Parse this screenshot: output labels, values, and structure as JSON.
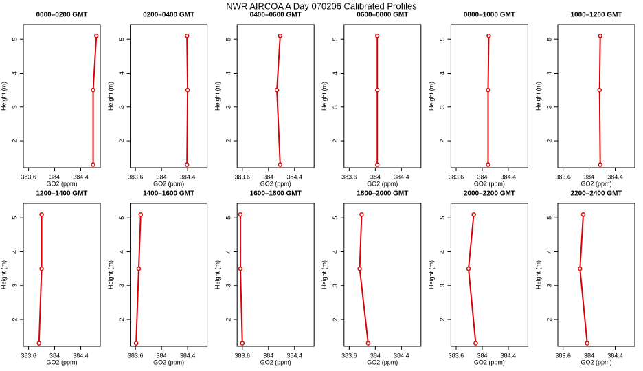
{
  "title": "NWR AIRCOA A  Day 070206  Calibrated Profiles",
  "chart_data": [
    {
      "type": "line",
      "title": "0000–0200 GMT",
      "xlabel": "GO2 (ppm)",
      "ylabel": "Height (m)",
      "color": "#dd0000",
      "x": [
        384.64,
        384.59,
        384.59
      ],
      "values": [
        5.1,
        3.5,
        1.3
      ],
      "xlim": [
        383.52,
        384.7
      ],
      "ylim": [
        1.21,
        5.43
      ],
      "xticks": [
        383.6,
        384.0,
        384.4
      ],
      "yticks": [
        2,
        3,
        4,
        5
      ]
    },
    {
      "type": "line",
      "title": "0200–0400 GMT",
      "xlabel": "GO2 (ppm)",
      "ylabel": "Height (m)",
      "color": "#dd0000",
      "x": [
        384.39,
        384.4,
        384.39
      ],
      "values": [
        5.1,
        3.5,
        1.3
      ],
      "xlim": [
        383.52,
        384.7
      ],
      "ylim": [
        1.21,
        5.43
      ],
      "xticks": [
        383.6,
        384.0,
        384.4
      ],
      "yticks": [
        2,
        3,
        4,
        5
      ]
    },
    {
      "type": "line",
      "title": "0400–0600 GMT",
      "xlabel": "GO2 (ppm)",
      "ylabel": "Height (m)",
      "color": "#dd0000",
      "x": [
        384.18,
        384.13,
        384.18
      ],
      "values": [
        5.1,
        3.5,
        1.3
      ],
      "xlim": [
        383.52,
        384.7
      ],
      "ylim": [
        1.21,
        5.43
      ],
      "xticks": [
        383.6,
        384.0,
        384.4
      ],
      "yticks": [
        2,
        3,
        4,
        5
      ]
    },
    {
      "type": "line",
      "title": "0600–0800 GMT",
      "xlabel": "GO2 (ppm)",
      "ylabel": "Height (m)",
      "color": "#dd0000",
      "x": [
        384.03,
        384.03,
        384.03
      ],
      "values": [
        5.1,
        3.5,
        1.3
      ],
      "xlim": [
        383.52,
        384.7
      ],
      "ylim": [
        1.21,
        5.43
      ],
      "xticks": [
        383.6,
        384.0,
        384.4
      ],
      "yticks": [
        2,
        3,
        4,
        5
      ]
    },
    {
      "type": "line",
      "title": "0800–1000 GMT",
      "xlabel": "GO2 (ppm)",
      "ylabel": "Height (m)",
      "color": "#dd0000",
      "x": [
        384.1,
        384.09,
        384.09
      ],
      "values": [
        5.1,
        3.5,
        1.3
      ],
      "xlim": [
        383.52,
        384.7
      ],
      "ylim": [
        1.21,
        5.43
      ],
      "xticks": [
        383.6,
        384.0,
        384.4
      ],
      "yticks": [
        2,
        3,
        4,
        5
      ]
    },
    {
      "type": "line",
      "title": "1000–1200 GMT",
      "xlabel": "GO2 (ppm)",
      "ylabel": "Height (m)",
      "color": "#dd0000",
      "x": [
        384.17,
        384.16,
        384.17
      ],
      "values": [
        5.1,
        3.5,
        1.3
      ],
      "xlim": [
        383.52,
        384.7
      ],
      "ylim": [
        1.21,
        5.43
      ],
      "xticks": [
        383.6,
        384.0,
        384.4
      ],
      "yticks": [
        2,
        3,
        4,
        5
      ]
    },
    {
      "type": "line",
      "title": "1200–1400 GMT",
      "xlabel": "GO2 (ppm)",
      "ylabel": "Height (m)",
      "color": "#dd0000",
      "x": [
        383.8,
        383.8,
        383.76
      ],
      "values": [
        5.1,
        3.5,
        1.3
      ],
      "xlim": [
        383.52,
        384.7
      ],
      "ylim": [
        1.21,
        5.43
      ],
      "xticks": [
        383.6,
        384.0,
        384.4
      ],
      "yticks": [
        2,
        3,
        4,
        5
      ]
    },
    {
      "type": "line",
      "title": "1400–1600 GMT",
      "xlabel": "GO2 (ppm)",
      "ylabel": "Height (m)",
      "color": "#dd0000",
      "x": [
        383.68,
        383.65,
        383.61
      ],
      "values": [
        5.1,
        3.5,
        1.3
      ],
      "xlim": [
        383.52,
        384.7
      ],
      "ylim": [
        1.21,
        5.43
      ],
      "xticks": [
        383.6,
        384.0,
        384.4
      ],
      "yticks": [
        2,
        3,
        4,
        5
      ]
    },
    {
      "type": "line",
      "title": "1600–1800 GMT",
      "xlabel": "GO2 (ppm)",
      "ylabel": "Height (m)",
      "color": "#dd0000",
      "x": [
        383.57,
        383.57,
        383.6
      ],
      "values": [
        5.1,
        3.5,
        1.3
      ],
      "xlim": [
        383.52,
        384.7
      ],
      "ylim": [
        1.21,
        5.43
      ],
      "xticks": [
        383.6,
        384.0,
        384.4
      ],
      "yticks": [
        2,
        3,
        4,
        5
      ]
    },
    {
      "type": "line",
      "title": "1800–2000 GMT",
      "xlabel": "GO2 (ppm)",
      "ylabel": "Height (m)",
      "color": "#dd0000",
      "x": [
        383.79,
        383.76,
        383.89
      ],
      "values": [
        5.1,
        3.5,
        1.3
      ],
      "xlim": [
        383.52,
        384.7
      ],
      "ylim": [
        1.21,
        5.43
      ],
      "xticks": [
        383.6,
        384.0,
        384.4
      ],
      "yticks": [
        2,
        3,
        4,
        5
      ]
    },
    {
      "type": "line",
      "title": "2000–2200 GMT",
      "xlabel": "GO2 (ppm)",
      "ylabel": "Height (m)",
      "color": "#dd0000",
      "x": [
        383.87,
        383.79,
        383.9
      ],
      "values": [
        5.1,
        3.5,
        1.3
      ],
      "xlim": [
        383.52,
        384.7
      ],
      "ylim": [
        1.21,
        5.43
      ],
      "xticks": [
        383.6,
        384.0,
        384.4
      ],
      "yticks": [
        2,
        3,
        4,
        5
      ]
    },
    {
      "type": "line",
      "title": "2200–2400 GMT",
      "xlabel": "GO2 (ppm)",
      "ylabel": "Height (m)",
      "color": "#dd0000",
      "x": [
        383.91,
        383.86,
        383.97
      ],
      "values": [
        5.1,
        3.5,
        1.3
      ],
      "xlim": [
        383.52,
        384.7
      ],
      "ylim": [
        1.21,
        5.43
      ],
      "xticks": [
        383.6,
        384.0,
        384.4
      ],
      "yticks": [
        2,
        3,
        4,
        5
      ]
    }
  ]
}
